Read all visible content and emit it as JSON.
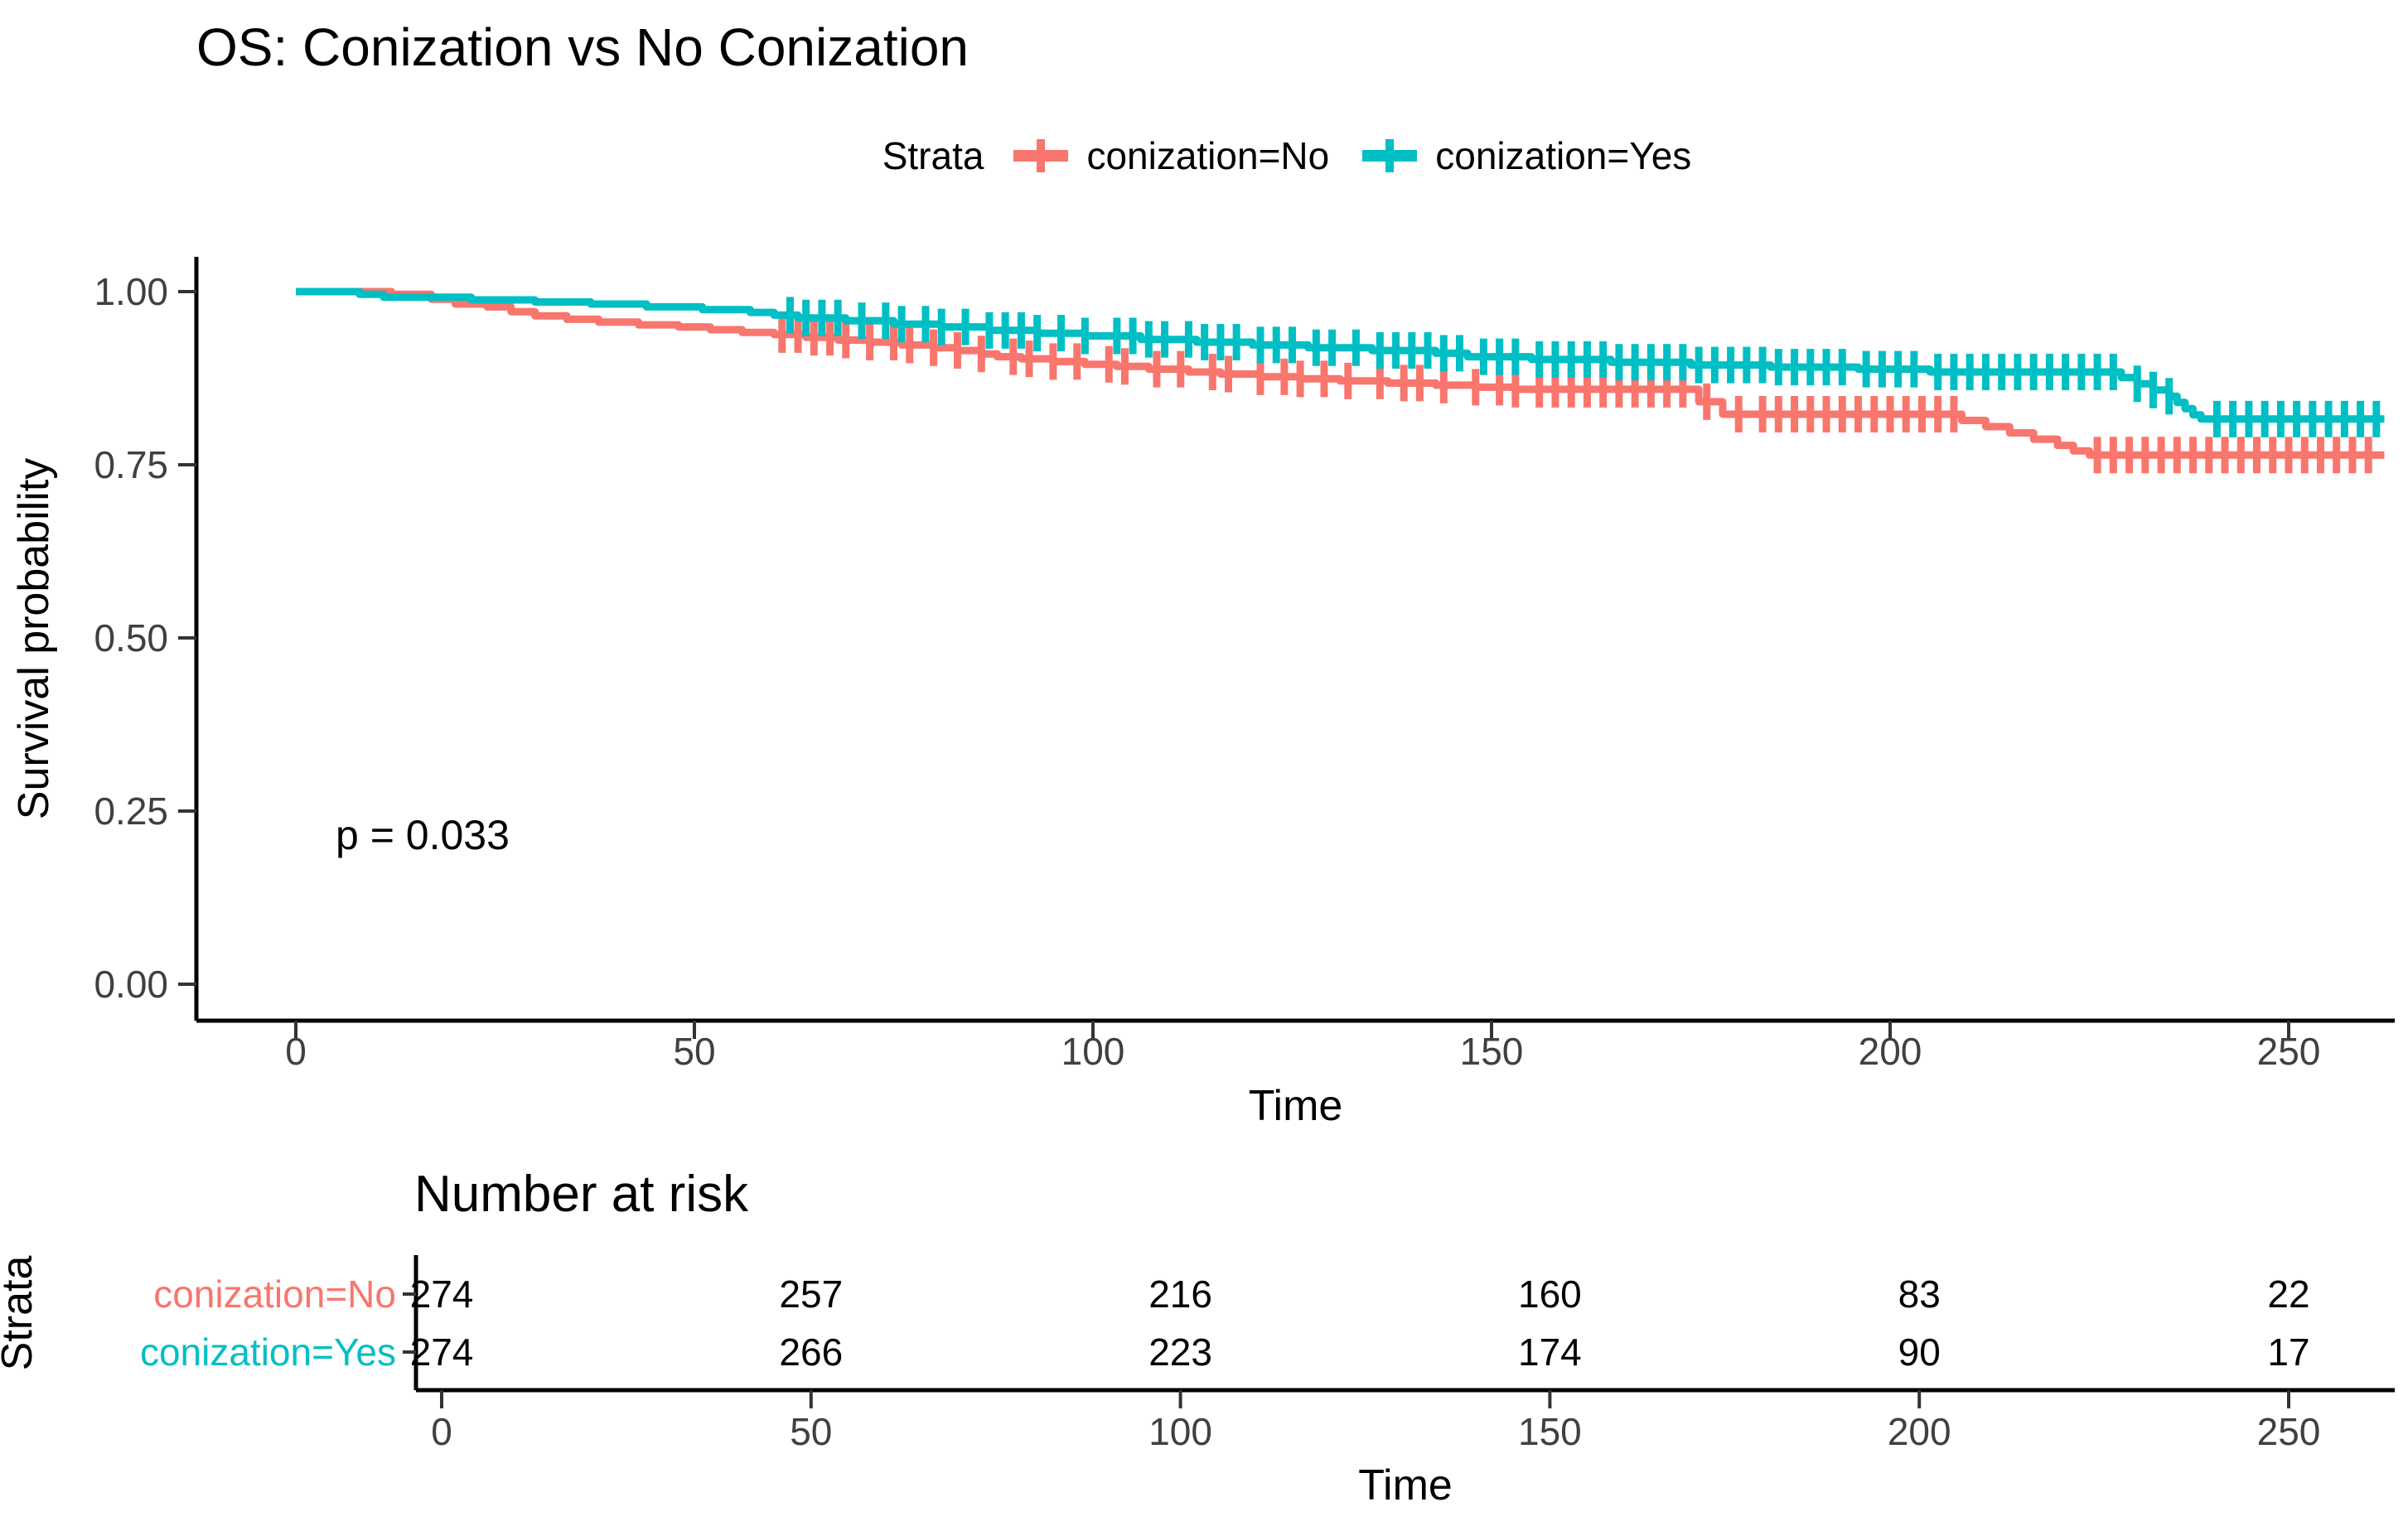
{
  "title": "OS: Conization vs No Conization",
  "legend": {
    "title": "Strata",
    "items": [
      {
        "label": "conization=No",
        "color": "#F8766D"
      },
      {
        "label": "conization=Yes",
        "color": "#00BFC4"
      }
    ]
  },
  "p_value": "p = 0.033",
  "axes": {
    "x_label": "Time",
    "y_label": "Survival probability",
    "x_ticks": [
      0,
      50,
      100,
      150,
      200,
      250
    ],
    "y_ticks": [
      1.0,
      0.75,
      0.5,
      0.25,
      0.0
    ],
    "y_tick_labels": [
      "1.00",
      "0.75",
      "0.50",
      "0.25",
      "0.00"
    ]
  },
  "risk_table": {
    "header": "Number at risk",
    "axis_title": "Strata",
    "x_label": "Time",
    "x_ticks": [
      0,
      50,
      100,
      150,
      200,
      250
    ],
    "rows": [
      {
        "label": "conization=No",
        "color": "#F8766D",
        "counts": [
          274,
          257,
          216,
          160,
          83,
          22
        ]
      },
      {
        "label": "conization=Yes",
        "color": "#00BFC4",
        "counts": [
          274,
          266,
          223,
          174,
          90,
          17
        ]
      }
    ]
  },
  "chart_data": {
    "type": "line",
    "subtype": "kaplan-meier-step",
    "title": "OS: Conization vs No Conization",
    "xlabel": "Time",
    "ylabel": "Survival probability",
    "xlim": [
      0,
      262
    ],
    "ylim": [
      0.0,
      1.0
    ],
    "x_ticks": [
      0,
      50,
      100,
      150,
      200,
      250
    ],
    "y_ticks": [
      0.0,
      0.25,
      0.5,
      0.75,
      1.0
    ],
    "grid": false,
    "legend_position": "top",
    "p_value_annotation": "p = 0.033",
    "annotation_xy": [
      5,
      0.22
    ],
    "end_time": 262,
    "series": [
      {
        "name": "conization=No",
        "color": "#F8766D",
        "steps": [
          [
            0,
            1.0
          ],
          [
            12,
            0.996
          ],
          [
            17,
            0.989
          ],
          [
            20,
            0.982
          ],
          [
            24,
            0.978
          ],
          [
            27,
            0.971
          ],
          [
            30,
            0.965
          ],
          [
            34,
            0.96
          ],
          [
            38,
            0.956
          ],
          [
            43,
            0.952
          ],
          [
            48,
            0.949
          ],
          [
            52,
            0.945
          ],
          [
            56,
            0.941
          ],
          [
            60,
            0.938
          ],
          [
            64,
            0.934
          ],
          [
            68,
            0.93
          ],
          [
            72,
            0.927
          ],
          [
            76,
            0.923
          ],
          [
            80,
            0.919
          ],
          [
            83,
            0.915
          ],
          [
            86,
            0.91
          ],
          [
            88,
            0.906
          ],
          [
            91,
            0.903
          ],
          [
            95,
            0.899
          ],
          [
            99,
            0.895
          ],
          [
            103,
            0.892
          ],
          [
            107,
            0.888
          ],
          [
            112,
            0.884
          ],
          [
            116,
            0.881
          ],
          [
            121,
            0.877
          ],
          [
            126,
            0.874
          ],
          [
            131,
            0.871
          ],
          [
            137,
            0.868
          ],
          [
            143,
            0.865
          ],
          [
            148,
            0.862
          ],
          [
            153,
            0.859
          ],
          [
            176,
            0.841
          ],
          [
            179,
            0.823
          ],
          [
            209,
            0.814
          ],
          [
            212,
            0.805
          ],
          [
            215,
            0.796
          ],
          [
            218,
            0.787
          ],
          [
            221,
            0.778
          ],
          [
            223,
            0.77
          ],
          [
            225,
            0.764
          ]
        ],
        "censor_times": [
          61,
          63,
          65,
          67,
          69,
          72,
          75,
          77,
          80,
          83,
          86,
          90,
          92,
          95,
          98,
          102,
          104,
          108,
          111,
          115,
          117,
          121,
          124,
          126,
          129,
          132,
          136,
          139,
          141,
          144,
          148,
          151,
          153,
          156,
          158,
          160,
          162,
          164,
          166,
          168,
          170,
          172,
          174,
          177,
          181,
          184,
          186,
          188,
          190,
          192,
          194,
          196,
          198,
          200,
          202,
          204,
          206,
          208,
          226,
          228,
          230,
          232,
          234,
          236,
          238,
          240,
          242,
          244,
          246,
          248,
          250,
          252,
          254,
          256,
          258,
          260
        ]
      },
      {
        "name": "conization=Yes",
        "color": "#00BFC4",
        "steps": [
          [
            0,
            1.0
          ],
          [
            8,
            0.996
          ],
          [
            11,
            0.992
          ],
          [
            22,
            0.988
          ],
          [
            30,
            0.985
          ],
          [
            37,
            0.982
          ],
          [
            44,
            0.978
          ],
          [
            51,
            0.974
          ],
          [
            57,
            0.97
          ],
          [
            60,
            0.966
          ],
          [
            63,
            0.962
          ],
          [
            69,
            0.958
          ],
          [
            75,
            0.953
          ],
          [
            81,
            0.949
          ],
          [
            87,
            0.944
          ],
          [
            93,
            0.94
          ],
          [
            99,
            0.936
          ],
          [
            106,
            0.931
          ],
          [
            113,
            0.927
          ],
          [
            120,
            0.923
          ],
          [
            127,
            0.919
          ],
          [
            135,
            0.915
          ],
          [
            143,
            0.911
          ],
          [
            147,
            0.906
          ],
          [
            155,
            0.902
          ],
          [
            165,
            0.898
          ],
          [
            175,
            0.894
          ],
          [
            185,
            0.891
          ],
          [
            196,
            0.888
          ],
          [
            205,
            0.884
          ],
          [
            229,
            0.876
          ],
          [
            231,
            0.867
          ],
          [
            233,
            0.858
          ],
          [
            235,
            0.849
          ],
          [
            236,
            0.84
          ],
          [
            237,
            0.831
          ],
          [
            238,
            0.822
          ],
          [
            239,
            0.816
          ]
        ],
        "censor_times": [
          62,
          64,
          66,
          68,
          71,
          74,
          76,
          79,
          81,
          84,
          87,
          89,
          91,
          93,
          96,
          99,
          103,
          105,
          107,
          109,
          112,
          114,
          116,
          118,
          121,
          123,
          125,
          128,
          130,
          133,
          136,
          138,
          140,
          142,
          144,
          146,
          149,
          151,
          153,
          156,
          158,
          160,
          162,
          164,
          166,
          168,
          170,
          172,
          174,
          176,
          178,
          180,
          182,
          184,
          186,
          188,
          190,
          192,
          194,
          197,
          199,
          201,
          203,
          206,
          208,
          210,
          212,
          214,
          216,
          218,
          220,
          222,
          224,
          226,
          228,
          231,
          233,
          235,
          241,
          243,
          245,
          247,
          249,
          251,
          253,
          255,
          257,
          259,
          261
        ]
      }
    ]
  }
}
